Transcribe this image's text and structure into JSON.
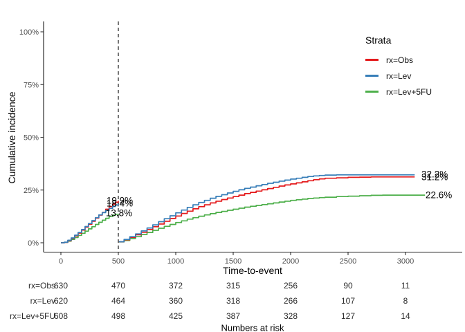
{
  "chart_data": {
    "type": "line",
    "subtype": "step-cumulative-incidence",
    "xlabel": "Time-to-event",
    "ylabel": "Cumulative incidence",
    "xlim": [
      0,
      3500
    ],
    "ylim": [
      0,
      100
    ],
    "grid": false,
    "x_ticks": {
      "values": [
        0,
        500,
        1000,
        1500,
        2000,
        2500,
        3000
      ],
      "labels": [
        "0",
        "500",
        "1000",
        "1500",
        "2000",
        "2500",
        "3000"
      ]
    },
    "y_ticks": {
      "values": [
        0,
        25,
        50,
        75,
        100
      ],
      "labels": [
        "0%",
        "25%",
        "50%",
        "75%",
        "100%"
      ]
    },
    "vline": {
      "x": 500,
      "style": "dashed",
      "color": "#3c3c3c"
    },
    "legend": {
      "title": "Strata",
      "position": "right",
      "items": [
        {
          "label": "rx=Obs",
          "color": "#E41A1C"
        },
        {
          "label": "rx=Lev",
          "color": "#377EB8"
        },
        {
          "label": "rx=Lev+5FU",
          "color": "#4DAF4A"
        }
      ]
    },
    "annotations": [
      {
        "label": "19.9%",
        "series": "rx=Obs",
        "t": 500,
        "pct": 19.9
      },
      {
        "label": "18.4%",
        "series": "rx=Lev",
        "t": 500,
        "pct": 18.4
      },
      {
        "label": "13.8%",
        "series": "rx=Lev+5FU",
        "t": 500,
        "pct": 13.8
      },
      {
        "label": "32.2%",
        "series": "rx=Lev",
        "t": 3100,
        "pct": 32.2
      },
      {
        "label": "31.2%",
        "series": "rx=Obs",
        "t": 3100,
        "pct": 31.2
      },
      {
        "label": "22.6%",
        "series": "rx=Lev+5FU",
        "t": 3200,
        "pct": 22.6
      }
    ],
    "series": [
      {
        "name": "rx=Obs",
        "color": "#E41A1C",
        "segments": [
          [
            [
              0,
              0
            ],
            [
              30,
              0.2
            ],
            [
              60,
              1.0
            ],
            [
              90,
              2.1
            ],
            [
              120,
              3.3
            ],
            [
              150,
              4.6
            ],
            [
              180,
              6.0
            ],
            [
              210,
              7.4
            ],
            [
              240,
              8.8
            ],
            [
              270,
              10.2
            ],
            [
              300,
              11.7
            ],
            [
              330,
              13.1
            ],
            [
              360,
              14.4
            ],
            [
              390,
              15.9
            ],
            [
              420,
              17.1
            ],
            [
              450,
              18.3
            ],
            [
              475,
              19.2
            ],
            [
              500,
              19.9
            ]
          ],
          [
            [
              505,
              0.5
            ],
            [
              550,
              1.4
            ],
            [
              600,
              2.6
            ],
            [
              650,
              3.8
            ],
            [
              700,
              5.0
            ],
            [
              750,
              6.3
            ],
            [
              800,
              7.6
            ],
            [
              850,
              8.9
            ],
            [
              900,
              10.2
            ],
            [
              950,
              11.5
            ],
            [
              1000,
              12.7
            ],
            [
              1050,
              13.9
            ],
            [
              1100,
              15.0
            ],
            [
              1150,
              16.1
            ],
            [
              1200,
              17.1
            ],
            [
              1250,
              18.0
            ],
            [
              1300,
              18.9
            ],
            [
              1350,
              19.7
            ],
            [
              1400,
              20.5
            ],
            [
              1450,
              21.2
            ],
            [
              1500,
              21.9
            ],
            [
              1550,
              22.6
            ],
            [
              1600,
              23.3
            ],
            [
              1650,
              23.9
            ],
            [
              1700,
              24.5
            ],
            [
              1750,
              25.1
            ],
            [
              1800,
              25.7
            ],
            [
              1850,
              26.3
            ],
            [
              1900,
              26.9
            ],
            [
              1950,
              27.4
            ],
            [
              2000,
              27.9
            ],
            [
              2050,
              28.4
            ],
            [
              2100,
              28.9
            ],
            [
              2150,
              29.4
            ],
            [
              2200,
              29.9
            ],
            [
              2250,
              30.3
            ],
            [
              2300,
              30.6
            ],
            [
              2400,
              30.8
            ],
            [
              2500,
              31.0
            ],
            [
              2600,
              31.1
            ],
            [
              2700,
              31.2
            ],
            [
              3080,
              31.2
            ]
          ]
        ]
      },
      {
        "name": "rx=Lev",
        "color": "#377EB8",
        "segments": [
          [
            [
              0,
              0
            ],
            [
              30,
              0.3
            ],
            [
              60,
              1.2
            ],
            [
              90,
              2.3
            ],
            [
              120,
              3.6
            ],
            [
              150,
              4.9
            ],
            [
              180,
              6.3
            ],
            [
              210,
              7.7
            ],
            [
              240,
              9.1
            ],
            [
              270,
              10.5
            ],
            [
              300,
              11.9
            ],
            [
              330,
              13.2
            ],
            [
              360,
              14.3
            ],
            [
              390,
              15.3
            ],
            [
              420,
              16.3
            ],
            [
              450,
              17.2
            ],
            [
              475,
              17.9
            ],
            [
              500,
              18.4
            ]
          ],
          [
            [
              505,
              0.5
            ],
            [
              550,
              1.6
            ],
            [
              600,
              2.9
            ],
            [
              650,
              4.2
            ],
            [
              700,
              5.6
            ],
            [
              750,
              7.0
            ],
            [
              800,
              8.5
            ],
            [
              850,
              10.0
            ],
            [
              900,
              11.4
            ],
            [
              950,
              12.8
            ],
            [
              1000,
              14.2
            ],
            [
              1050,
              15.5
            ],
            [
              1100,
              16.8
            ],
            [
              1150,
              18.0
            ],
            [
              1200,
              19.1
            ],
            [
              1250,
              20.1
            ],
            [
              1300,
              21.1
            ],
            [
              1350,
              22.0
            ],
            [
              1400,
              22.8
            ],
            [
              1450,
              23.6
            ],
            [
              1500,
              24.4
            ],
            [
              1550,
              25.1
            ],
            [
              1600,
              25.8
            ],
            [
              1650,
              26.4
            ],
            [
              1700,
              27.0
            ],
            [
              1750,
              27.6
            ],
            [
              1800,
              28.2
            ],
            [
              1850,
              28.7
            ],
            [
              1900,
              29.2
            ],
            [
              1950,
              29.7
            ],
            [
              2000,
              30.2
            ],
            [
              2050,
              30.6
            ],
            [
              2100,
              31.0
            ],
            [
              2150,
              31.4
            ],
            [
              2200,
              31.7
            ],
            [
              2250,
              31.9
            ],
            [
              2300,
              32.1
            ],
            [
              2400,
              32.2
            ],
            [
              3080,
              32.2
            ]
          ]
        ]
      },
      {
        "name": "rx=Lev+5FU",
        "color": "#4DAF4A",
        "segments": [
          [
            [
              0,
              0
            ],
            [
              30,
              0.2
            ],
            [
              60,
              0.8
            ],
            [
              90,
              1.6
            ],
            [
              120,
              2.5
            ],
            [
              150,
              3.5
            ],
            [
              180,
              4.5
            ],
            [
              210,
              5.5
            ],
            [
              240,
              6.6
            ],
            [
              270,
              7.6
            ],
            [
              300,
              8.7
            ],
            [
              330,
              9.7
            ],
            [
              360,
              10.7
            ],
            [
              390,
              11.6
            ],
            [
              420,
              12.4
            ],
            [
              450,
              13.1
            ],
            [
              475,
              13.5
            ],
            [
              500,
              13.8
            ]
          ],
          [
            [
              505,
              0.4
            ],
            [
              550,
              1.1
            ],
            [
              600,
              2.0
            ],
            [
              650,
              2.9
            ],
            [
              700,
              3.9
            ],
            [
              750,
              4.9
            ],
            [
              800,
              5.9
            ],
            [
              850,
              6.9
            ],
            [
              900,
              7.8
            ],
            [
              950,
              8.7
            ],
            [
              1000,
              9.6
            ],
            [
              1050,
              10.4
            ],
            [
              1100,
              11.2
            ],
            [
              1150,
              11.9
            ],
            [
              1200,
              12.6
            ],
            [
              1250,
              13.2
            ],
            [
              1300,
              13.8
            ],
            [
              1350,
              14.4
            ],
            [
              1400,
              14.9
            ],
            [
              1450,
              15.4
            ],
            [
              1500,
              15.9
            ],
            [
              1550,
              16.4
            ],
            [
              1600,
              16.9
            ],
            [
              1650,
              17.3
            ],
            [
              1700,
              17.7
            ],
            [
              1750,
              18.1
            ],
            [
              1800,
              18.5
            ],
            [
              1850,
              18.9
            ],
            [
              1900,
              19.3
            ],
            [
              1950,
              19.7
            ],
            [
              2000,
              20.1
            ],
            [
              2050,
              20.4
            ],
            [
              2100,
              20.7
            ],
            [
              2150,
              21.0
            ],
            [
              2200,
              21.2
            ],
            [
              2250,
              21.4
            ],
            [
              2300,
              21.6
            ],
            [
              2400,
              21.9
            ],
            [
              2500,
              22.1
            ],
            [
              2600,
              22.3
            ],
            [
              2700,
              22.5
            ],
            [
              2800,
              22.6
            ],
            [
              3170,
              22.6
            ]
          ]
        ]
      }
    ],
    "risk_table": {
      "caption": "Numbers at risk",
      "time_points": [
        0,
        500,
        1000,
        1500,
        2000,
        2500,
        3000
      ],
      "rows": [
        {
          "label": "rx=Obs",
          "values": [
            630,
            470,
            372,
            315,
            256,
            90,
            11
          ]
        },
        {
          "label": "rx=Lev",
          "values": [
            620,
            464,
            360,
            318,
            266,
            107,
            8
          ]
        },
        {
          "label": "rx=Lev+5FU",
          "values": [
            608,
            498,
            425,
            387,
            328,
            127,
            14
          ]
        }
      ]
    }
  }
}
